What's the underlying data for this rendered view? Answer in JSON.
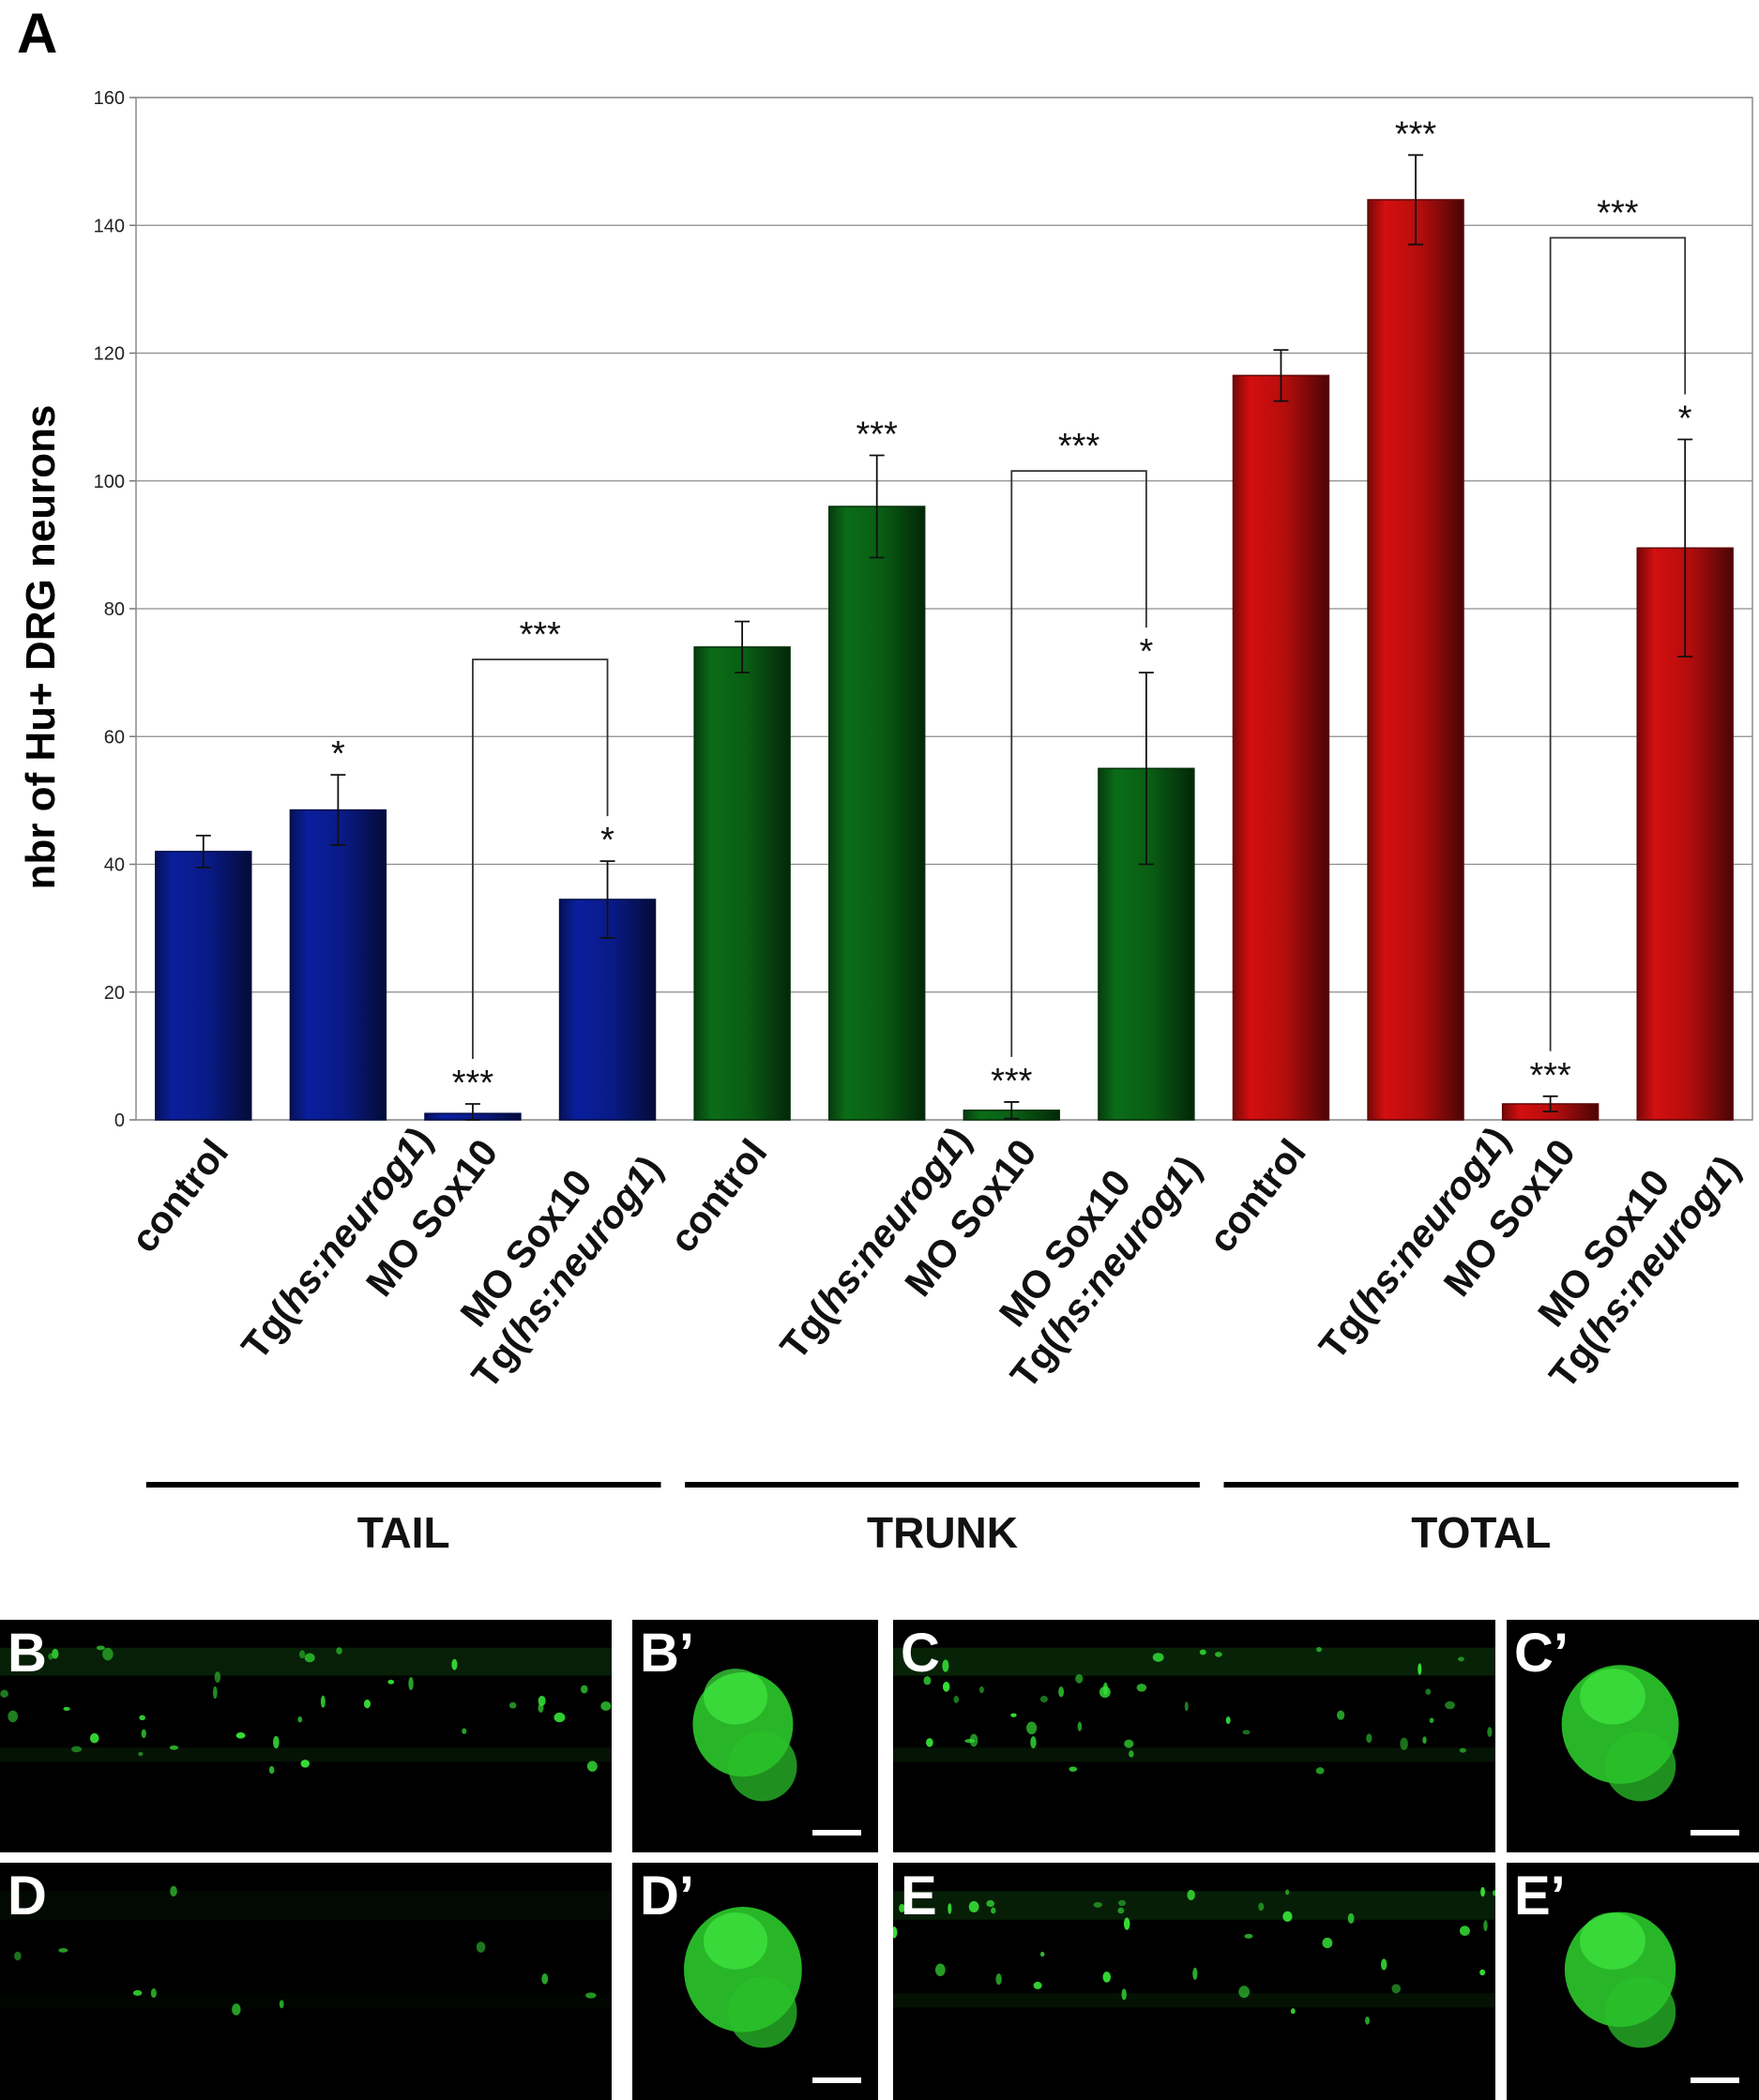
{
  "panel_label": "A",
  "chart_data": {
    "type": "bar",
    "ylabel": "nbr of Hu+ DRG neurons",
    "ylim": [
      0,
      160
    ],
    "yticks": [
      0,
      20,
      40,
      60,
      80,
      100,
      120,
      140,
      160
    ],
    "grid": true,
    "groups": [
      {
        "name": "TAIL",
        "color": "#0a1f9e",
        "bars": [
          {
            "line1": "control",
            "line2": "",
            "value": 42,
            "err": 2.5,
            "sig": ""
          },
          {
            "line1": "",
            "line2": "Tg(hs:neurog1)",
            "value": 48.5,
            "err": 5.5,
            "sig": "*"
          },
          {
            "line1": "MO Sox10",
            "line2": "",
            "value": 1,
            "err": 1.5,
            "sig": "***"
          },
          {
            "line1": "MO Sox10",
            "line2": "Tg(hs:neurog1)",
            "value": 34.5,
            "err": 6,
            "sig": "*"
          }
        ],
        "bracket": {
          "from": 2,
          "to": 3,
          "label": "***"
        }
      },
      {
        "name": "TRUNK",
        "color": "#0b6d18",
        "bars": [
          {
            "line1": "control",
            "line2": "",
            "value": 74,
            "err": 4,
            "sig": ""
          },
          {
            "line1": "",
            "line2": "Tg(hs:neurog1)",
            "value": 96,
            "err": 8,
            "sig": "***"
          },
          {
            "line1": "MO Sox10",
            "line2": "",
            "value": 1.5,
            "err": 1.3,
            "sig": "***"
          },
          {
            "line1": "MO Sox10",
            "line2": "Tg(hs:neurog1)",
            "value": 55,
            "err": 15,
            "sig": "*"
          }
        ],
        "bracket": {
          "from": 2,
          "to": 3,
          "label": "***"
        }
      },
      {
        "name": "TOTAL",
        "color": "#d40f0f",
        "bars": [
          {
            "line1": "control",
            "line2": "",
            "value": 116.5,
            "err": 4,
            "sig": ""
          },
          {
            "line1": "",
            "line2": "Tg(hs:neurog1)",
            "value": 144,
            "err": 7,
            "sig": "***"
          },
          {
            "line1": "MO Sox10",
            "line2": "",
            "value": 2.5,
            "err": 1.2,
            "sig": "***"
          },
          {
            "line1": "MO Sox10",
            "line2": "Tg(hs:neurog1)",
            "value": 89.5,
            "err": 17,
            "sig": "*"
          }
        ],
        "bracket": {
          "from": 2,
          "to": 3,
          "label": "***"
        }
      }
    ]
  },
  "micrographs": [
    {
      "label": "B",
      "type": "wide",
      "density": 0.9
    },
    {
      "label": "B’",
      "type": "cells",
      "density": 0.55
    },
    {
      "label": "C",
      "type": "wide",
      "density": 1.0
    },
    {
      "label": "C’",
      "type": "cells",
      "density": 0.9
    },
    {
      "label": "D",
      "type": "wide",
      "density": 0.25
    },
    {
      "label": "D’",
      "type": "cells",
      "density": 1.0
    },
    {
      "label": "E",
      "type": "wide",
      "density": 0.85
    },
    {
      "label": "E’",
      "type": "cells",
      "density": 0.75
    }
  ]
}
